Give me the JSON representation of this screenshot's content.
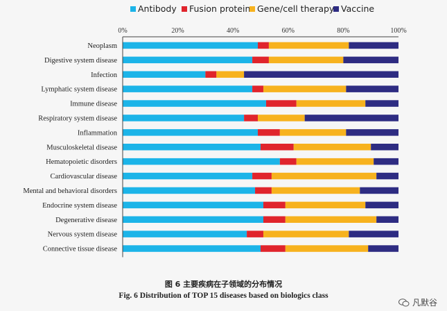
{
  "chart_data": {
    "type": "bar",
    "orientation": "horizontal",
    "stacked": true,
    "percent_stacked": true,
    "categories": [
      "Neoplasm",
      "Digestive system disease",
      "Infection",
      "Lymphatic system disease",
      "Immune disease",
      "Respiratory system disease",
      "Inflammation",
      "Musculoskeletal disease",
      "Hematopoietic disorders",
      "Cardiovascular disease",
      "Mental and behavioral disorders",
      "Endocrine system disease",
      "Degenerative disease",
      "Nervous system disease",
      "Connective tissue disease"
    ],
    "series": [
      {
        "name": "Antibody",
        "color": "#1cb4e8",
        "values": [
          49,
          47,
          30,
          47,
          52,
          44,
          49,
          50,
          57,
          47,
          48,
          51,
          51,
          45,
          50
        ]
      },
      {
        "name": "Fusion protein",
        "color": "#e0242c",
        "values": [
          4,
          6,
          4,
          4,
          11,
          5,
          8,
          12,
          6,
          7,
          6,
          8,
          8,
          6,
          9
        ]
      },
      {
        "name": "Gene/cell therapy",
        "color": "#f7b21e",
        "values": [
          29,
          27,
          10,
          30,
          25,
          17,
          24,
          28,
          28,
          38,
          32,
          29,
          33,
          31,
          30
        ]
      },
      {
        "name": "Vaccine",
        "color": "#2e2c82",
        "values": [
          18,
          20,
          56,
          19,
          12,
          34,
          19,
          10,
          9,
          8,
          14,
          12,
          8,
          18,
          11
        ]
      }
    ],
    "xlim": [
      0,
      100
    ],
    "xticks": [
      "0%",
      "20%",
      "40%",
      "60%",
      "80%",
      "100%"
    ],
    "legend_position": "top",
    "grid": false
  },
  "caption_cn": "图 6    主要疾病在子领域的分布情况",
  "caption_en": "Fig. 6    Distribution of TOP 15 diseases based on biologics class",
  "watermark": "凡默谷"
}
